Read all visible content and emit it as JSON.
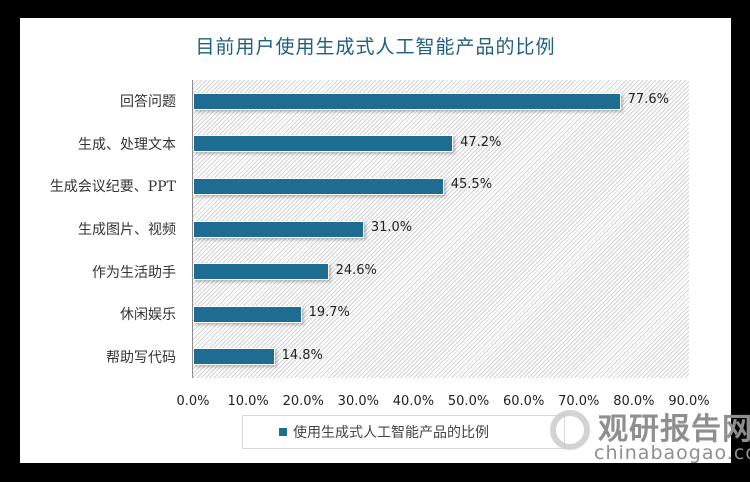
{
  "title": "目前用户使用生成式人工智能产品的比例",
  "legend": {
    "label": "使用生成式人工智能产品的比例",
    "color": "#1f6c92"
  },
  "watermark": {
    "cn": "观研报告网",
    "en": "chinabaogao.com"
  },
  "axis": {
    "ticks": [
      "0.0%",
      "10.0%",
      "20.0%",
      "30.0%",
      "40.0%",
      "50.0%",
      "60.0%",
      "70.0%",
      "80.0%",
      "90.0%"
    ]
  },
  "chart_data": {
    "type": "bar",
    "orientation": "horizontal",
    "title": "目前用户使用生成式人工智能产品的比例",
    "categories": [
      "回答问题",
      "生成、处理文本",
      "生成会议纪要、PPT",
      "生成图片、视频",
      "作为生活助手",
      "休闲娱乐",
      "帮助写代码"
    ],
    "values": [
      77.6,
      47.2,
      45.5,
      31.0,
      24.6,
      19.7,
      14.8
    ],
    "labels": [
      "77.6%",
      "47.2%",
      "45.5%",
      "31.0%",
      "24.6%",
      "19.7%",
      "14.8%"
    ],
    "series": [
      {
        "name": "使用生成式人工智能产品的比例",
        "values": [
          77.6,
          47.2,
          45.5,
          31.0,
          24.6,
          19.7,
          14.8
        ],
        "color": "#1f6c92"
      }
    ],
    "xlabel": "",
    "ylabel": "",
    "xlim": [
      0,
      90
    ],
    "grid": false,
    "legend_position": "bottom"
  }
}
